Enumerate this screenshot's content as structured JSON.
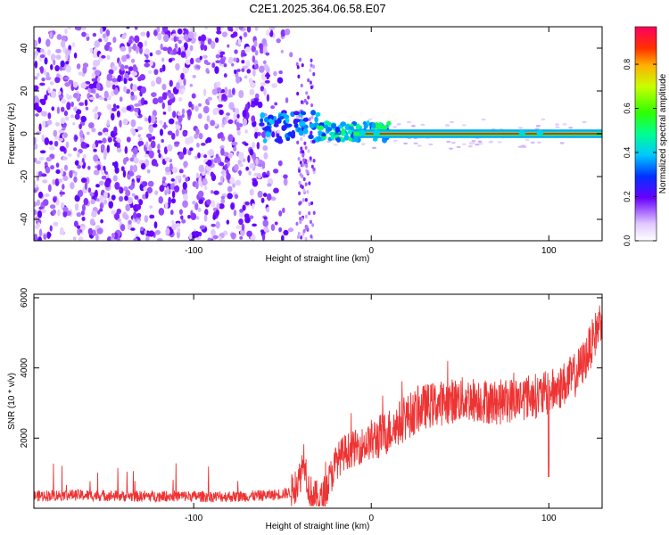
{
  "figure": {
    "title": "C2E1.2025.364.06.58.E07"
  },
  "chart_data": [
    {
      "type": "heatmap",
      "xlabel": "Height of straight line (km)",
      "ylabel": "Frequency (Hz)",
      "xlim": [
        -190,
        130
      ],
      "ylim": [
        -50,
        50
      ],
      "x_ticks": [
        -100,
        0,
        100
      ],
      "y_ticks": [
        -40,
        -20,
        0,
        20,
        40
      ],
      "grid": false,
      "regions": [
        {
          "x_range": [
            -190,
            -55
          ],
          "description_level": "scattered low amplitude",
          "amplitude": [
            0.05,
            0.2
          ]
        },
        {
          "x_range": [
            -60,
            -30
          ],
          "freq_center": 3,
          "freq_spread": 6,
          "amplitude": [
            0.2,
            0.5
          ]
        },
        {
          "x_range": [
            -30,
            10
          ],
          "freq_center": 0,
          "freq_spread": 3,
          "amplitude": [
            0.3,
            0.9
          ]
        },
        {
          "x_range": [
            10,
            130
          ],
          "freq_center": 0,
          "freq_spread": 1,
          "amplitude": [
            0.9,
            1.0
          ]
        }
      ],
      "colorbar": {
        "label": "Normalized spectral amplitude",
        "ticks": [
          "0.0",
          "0.2",
          "0.4",
          "0.6",
          "0.8"
        ],
        "range": [
          0,
          0.97
        ]
      }
    },
    {
      "type": "line",
      "xlabel": "Height of straight line (km)",
      "ylabel": "SNR (10 * v/v)",
      "xlim": [
        -190,
        130
      ],
      "ylim": [
        0,
        6100
      ],
      "x_ticks": [
        -100,
        0,
        100
      ],
      "y_ticks": [
        2000,
        4000,
        6000
      ],
      "grid": false,
      "color": "#ee3333",
      "series": [
        {
          "x": [
            -190,
            -170,
            -150,
            -130,
            -110,
            -90,
            -70,
            -55,
            -45,
            -40,
            -38,
            -35,
            -32,
            -28,
            -25,
            -22,
            -20,
            -15,
            -10,
            -5,
            0,
            10,
            20,
            30,
            40,
            50,
            60,
            70,
            80,
            90,
            95,
            100,
            105,
            110,
            115,
            120,
            125,
            130
          ],
          "y": [
            350,
            380,
            360,
            340,
            350,
            330,
            340,
            380,
            450,
            900,
            1500,
            500,
            300,
            250,
            600,
            1000,
            1300,
            1600,
            1700,
            1800,
            1900,
            2200,
            2600,
            2900,
            3000,
            3100,
            3100,
            3000,
            3100,
            3200,
            3200,
            3300,
            3400,
            3600,
            3800,
            4200,
            4800,
            5500
          ]
        }
      ]
    }
  ]
}
